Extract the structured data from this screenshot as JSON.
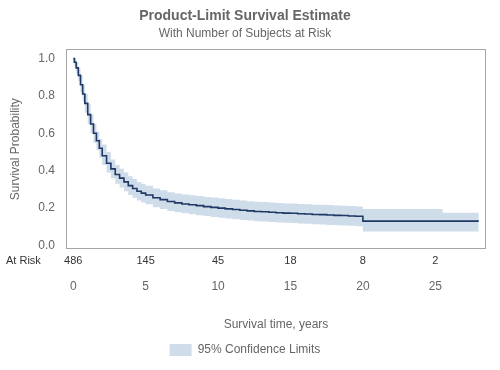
{
  "chart_data": {
    "type": "step",
    "title": "Product-Limit Survival Estimate",
    "subtitle": "With Number of Subjects at Risk",
    "xlabel": "Survival time, years",
    "ylabel": "Survival Probability",
    "x": [
      0.0,
      0.08,
      0.2,
      0.35,
      0.5,
      0.65,
      0.8,
      1.0,
      1.2,
      1.4,
      1.6,
      1.8,
      2.0,
      2.3,
      2.6,
      2.9,
      3.2,
      3.5,
      3.8,
      4.1,
      4.4,
      4.7,
      5.0,
      5.5,
      6.0,
      6.5,
      7.0,
      7.5,
      8.0,
      8.5,
      9.0,
      9.5,
      10.0,
      10.5,
      11.0,
      11.5,
      12.0,
      12.5,
      13.0,
      13.5,
      14.0,
      14.5,
      15.0,
      15.5,
      16.0,
      16.5,
      17.0,
      17.5,
      18.0,
      18.5,
      19.0,
      19.5,
      20.0,
      20.5,
      21.0,
      21.5,
      22.0,
      22.5,
      23.0,
      23.5,
      24.0,
      24.5,
      25.0,
      25.5,
      26.0,
      27.0,
      27.5,
      28.0
    ],
    "values": [
      1.0,
      0.98,
      0.95,
      0.91,
      0.86,
      0.81,
      0.76,
      0.7,
      0.65,
      0.6,
      0.56,
      0.52,
      0.48,
      0.44,
      0.41,
      0.38,
      0.36,
      0.34,
      0.32,
      0.305,
      0.29,
      0.28,
      0.27,
      0.255,
      0.245,
      0.235,
      0.228,
      0.222,
      0.218,
      0.213,
      0.208,
      0.204,
      0.2,
      0.196,
      0.192,
      0.188,
      0.185,
      0.182,
      0.18,
      0.178,
      0.175,
      0.173,
      0.172,
      0.17,
      0.168,
      0.166,
      0.165,
      0.163,
      0.161,
      0.16,
      0.158,
      0.156,
      0.13,
      0.13,
      0.13,
      0.13,
      0.13,
      0.13,
      0.13,
      0.13,
      0.13,
      0.13,
      0.13,
      0.13,
      0.13,
      0.13,
      0.13,
      0.13
    ],
    "color": "#1f3864",
    "band": {
      "name": "95% Confidence Limits",
      "color": "#a8bfd8",
      "lower": [
        0.98,
        0.96,
        0.92,
        0.88,
        0.82,
        0.77,
        0.71,
        0.65,
        0.6,
        0.55,
        0.51,
        0.47,
        0.43,
        0.39,
        0.36,
        0.33,
        0.31,
        0.29,
        0.27,
        0.255,
        0.24,
        0.23,
        0.22,
        0.205,
        0.195,
        0.185,
        0.178,
        0.172,
        0.167,
        0.162,
        0.157,
        0.152,
        0.148,
        0.144,
        0.14,
        0.136,
        0.133,
        0.13,
        0.128,
        0.126,
        0.123,
        0.121,
        0.12,
        0.118,
        0.116,
        0.114,
        0.112,
        0.11,
        0.108,
        0.107,
        0.105,
        0.103,
        0.075,
        0.075,
        0.075,
        0.075,
        0.075,
        0.075,
        0.075,
        0.075,
        0.075,
        0.075,
        0.075,
        0.075,
        0.075,
        0.075,
        0.075,
        0.075
      ],
      "upper": [
        1.0,
        1.0,
        0.98,
        0.95,
        0.91,
        0.86,
        0.81,
        0.76,
        0.7,
        0.65,
        0.61,
        0.57,
        0.54,
        0.5,
        0.46,
        0.43,
        0.41,
        0.39,
        0.37,
        0.355,
        0.34,
        0.33,
        0.32,
        0.305,
        0.295,
        0.285,
        0.278,
        0.272,
        0.269,
        0.264,
        0.259,
        0.256,
        0.252,
        0.248,
        0.244,
        0.24,
        0.237,
        0.234,
        0.232,
        0.23,
        0.227,
        0.225,
        0.224,
        0.222,
        0.22,
        0.218,
        0.218,
        0.216,
        0.214,
        0.213,
        0.211,
        0.209,
        0.195,
        0.195,
        0.195,
        0.195,
        0.195,
        0.195,
        0.195,
        0.195,
        0.195,
        0.195,
        0.195,
        0.175,
        0.175,
        0.175,
        0.175,
        0.175
      ]
    },
    "at_risk": {
      "label": "At Risk",
      "x": [
        0,
        5,
        10,
        15,
        20,
        25
      ],
      "counts": [
        486,
        145,
        45,
        18,
        8,
        2
      ]
    },
    "xlim": [
      -0.5,
      28.5
    ],
    "ylim": [
      -0.02,
      1.05
    ],
    "xticks": [
      0,
      5,
      10,
      15,
      20,
      25
    ],
    "yticks": [
      {
        "value": 0.0,
        "label": "0.0"
      },
      0.2,
      0.4,
      0.6,
      0.8,
      {
        "value": 1.0,
        "label": "1.0"
      }
    ],
    "grid": false,
    "legend": "bottom"
  }
}
